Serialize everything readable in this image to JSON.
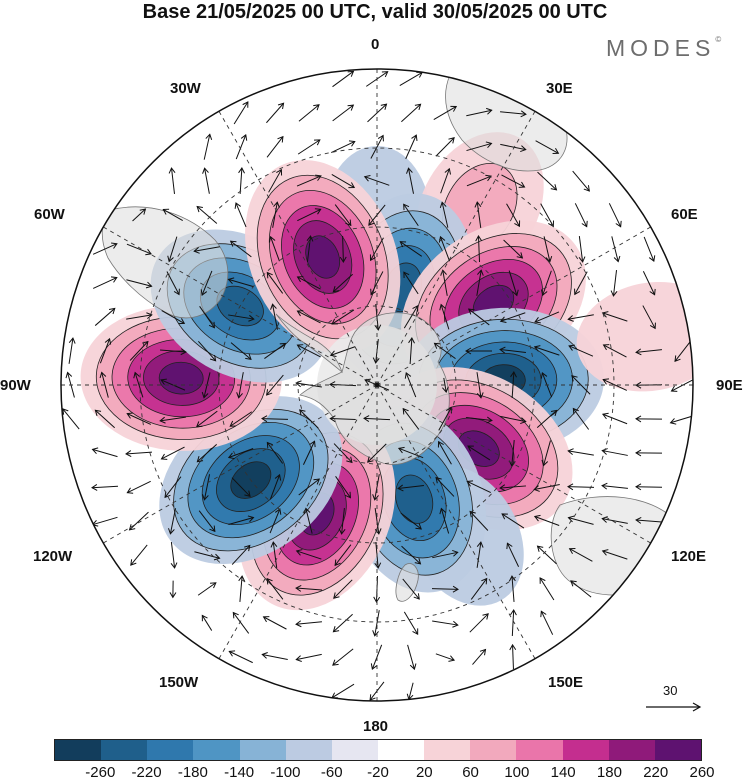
{
  "title": "Base 21/05/2025 00 UTC, valid 30/05/2025 00 UTC",
  "logo": "MODES",
  "logo_mark": "©",
  "longitude_labels": [
    "0",
    "30E",
    "60E",
    "90E",
    "120E",
    "150E",
    "180",
    "150W",
    "120W",
    "90W",
    "60W",
    "30W"
  ],
  "reference_vector": {
    "label": "30"
  },
  "colorbar": {
    "ticks": [
      "-260",
      "-220",
      "-180",
      "-140",
      "-100",
      "-60",
      "-20",
      "20",
      "60",
      "100",
      "140",
      "180",
      "220",
      "260"
    ],
    "colors": [
      "#123d5c",
      "#1f5f8b",
      "#2f78ad",
      "#4f95c4",
      "#87b3d6",
      "#bccbe2",
      "#e6e6f1",
      "#ffffff",
      "#f7d3d8",
      "#f2a9bd",
      "#ea75aa",
      "#c42e8f",
      "#8f1a7a",
      "#5e1270"
    ]
  },
  "anomalies": [
    {
      "lon": 0,
      "colat": 0.52,
      "value": -60
    },
    {
      "lon": 30,
      "colat": 0.65,
      "value": 100
    },
    {
      "lon": 15,
      "colat": 0.32,
      "value": -220
    },
    {
      "lon": 55,
      "colat": 0.45,
      "value": 260
    },
    {
      "lon": 88,
      "colat": 0.4,
      "value": -260
    },
    {
      "lon": 122,
      "colat": 0.38,
      "value": 260
    },
    {
      "lon": 150,
      "colat": 0.55,
      "value": -60
    },
    {
      "lon": 162,
      "colat": 0.38,
      "value": -220
    },
    {
      "lon": 205,
      "colat": 0.45,
      "value": 260
    },
    {
      "lon": 233,
      "colat": 0.5,
      "value": -260
    },
    {
      "lon": 272,
      "colat": 0.62,
      "value": 260
    },
    {
      "lon": 300,
      "colat": 0.5,
      "value": -220
    },
    {
      "lon": 337,
      "colat": 0.44,
      "value": 260
    },
    {
      "lon": 80,
      "colat": 0.88,
      "value": 60
    }
  ]
}
